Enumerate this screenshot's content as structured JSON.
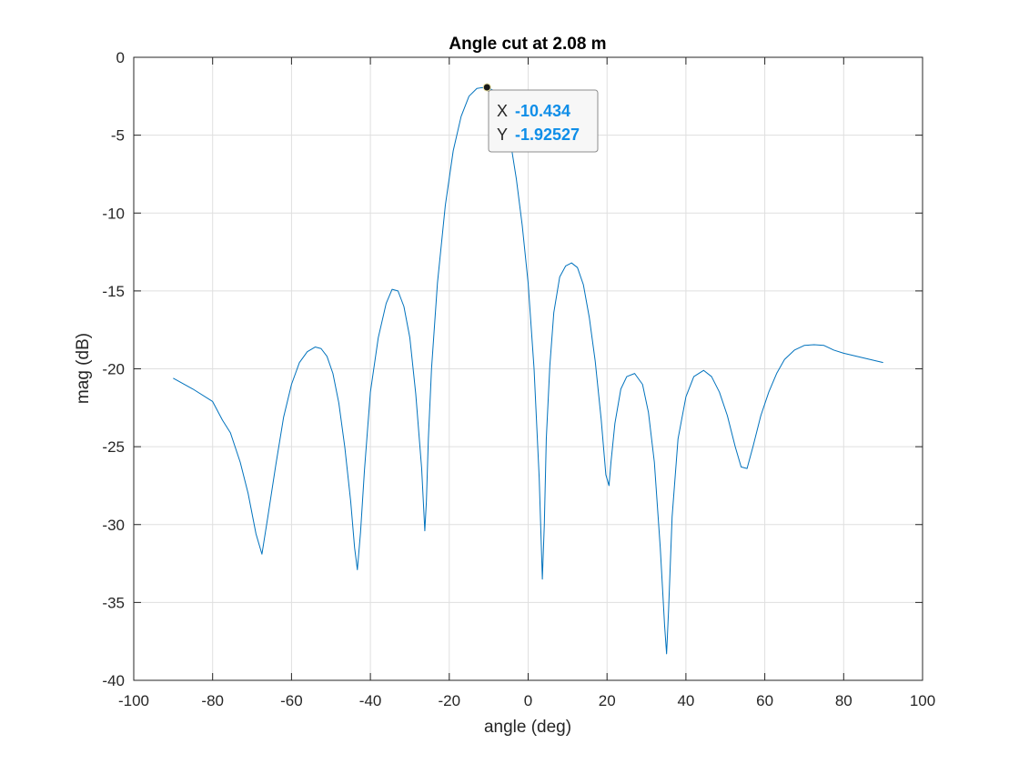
{
  "chart_data": {
    "type": "line",
    "title": "Angle cut at 2.08 m",
    "xlabel": "angle (deg)",
    "ylabel": "mag (dB)",
    "xlim": [
      -100,
      100
    ],
    "ylim": [
      -40,
      0
    ],
    "xticks": [
      -100,
      -80,
      -60,
      -40,
      -20,
      0,
      20,
      40,
      60,
      80,
      100
    ],
    "yticks": [
      0,
      -5,
      -10,
      -15,
      -20,
      -25,
      -30,
      -35,
      -40
    ],
    "grid": true,
    "colors": {
      "line": "#0072BD",
      "datatip_value": "#0f8ee8",
      "marker": "#1a1a1a"
    },
    "series": [
      {
        "x": [
          -90,
          -85,
          -80,
          -77.5,
          -75.5,
          -73,
          -71,
          -69,
          -67.5,
          -66,
          -64,
          -62,
          -60,
          -58,
          -56,
          -54,
          -52.5,
          -51,
          -49.5,
          -48,
          -46.5,
          -45,
          -44,
          -43.3,
          -42.5,
          -41.5,
          -40,
          -38,
          -36,
          -34.5,
          -33,
          -31.5,
          -30,
          -28.5,
          -27,
          -26.2,
          -25.8,
          -25.3,
          -24.5,
          -23,
          -21,
          -19,
          -17,
          -15,
          -13,
          -12,
          -10.434,
          -9,
          -7.5,
          -6,
          -4.5,
          -3,
          -1.5,
          0,
          1.5,
          2.8,
          3.6,
          4.1,
          4.6,
          5.5,
          6.5,
          8,
          9.5,
          11,
          12.5,
          14,
          15.5,
          17,
          18.5,
          19.7,
          20.5,
          21,
          22,
          23.5,
          25,
          27,
          29,
          30.5,
          32,
          33.5,
          34.6,
          35.1,
          35.6,
          36.5,
          38,
          40,
          42,
          44.5,
          46.5,
          48.5,
          50.5,
          52.5,
          54,
          55.5,
          57,
          59,
          61,
          63,
          65,
          67.5,
          70,
          72.5,
          75,
          77.5,
          80,
          85,
          90
        ],
        "y": [
          -20.6,
          -21.3,
          -22.1,
          -23.3,
          -24.1,
          -26.0,
          -28.0,
          -30.6,
          -31.9,
          -29.5,
          -26.2,
          -23.1,
          -21.0,
          -19.6,
          -18.9,
          -18.6,
          -18.7,
          -19.2,
          -20.3,
          -22.2,
          -25.0,
          -28.5,
          -31.5,
          -32.9,
          -30.5,
          -26.5,
          -21.5,
          -18.0,
          -15.8,
          -14.9,
          -15.0,
          -16.0,
          -18.0,
          -21.6,
          -26.4,
          -30.4,
          -28.5,
          -24.5,
          -20.0,
          -14.5,
          -9.5,
          -6.0,
          -3.8,
          -2.5,
          -2.0,
          -1.96,
          -1.93,
          -2.1,
          -2.7,
          -3.8,
          -5.4,
          -7.8,
          -10.8,
          -14.5,
          -20.0,
          -27.0,
          -33.5,
          -30.0,
          -24.5,
          -19.8,
          -16.4,
          -14.1,
          -13.4,
          -13.2,
          -13.5,
          -14.6,
          -16.7,
          -19.5,
          -23.2,
          -26.8,
          -27.5,
          -26.0,
          -23.5,
          -21.3,
          -20.5,
          -20.3,
          -21.0,
          -22.8,
          -26.0,
          -31.5,
          -36.5,
          -38.3,
          -35.5,
          -29.5,
          -24.5,
          -21.8,
          -20.5,
          -20.1,
          -20.5,
          -21.5,
          -23.0,
          -25.0,
          -26.3,
          -26.4,
          -25.0,
          -23.0,
          -21.5,
          -20.3,
          -19.4,
          -18.8,
          -18.5,
          -18.45,
          -18.5,
          -18.8,
          -19.0,
          -19.3,
          -19.6
        ]
      }
    ],
    "datatip": {
      "x_label": "X",
      "y_label": "Y",
      "x_value": "-10.434",
      "y_value": "-1.92527",
      "x": -10.434,
      "y": -1.92527
    }
  }
}
